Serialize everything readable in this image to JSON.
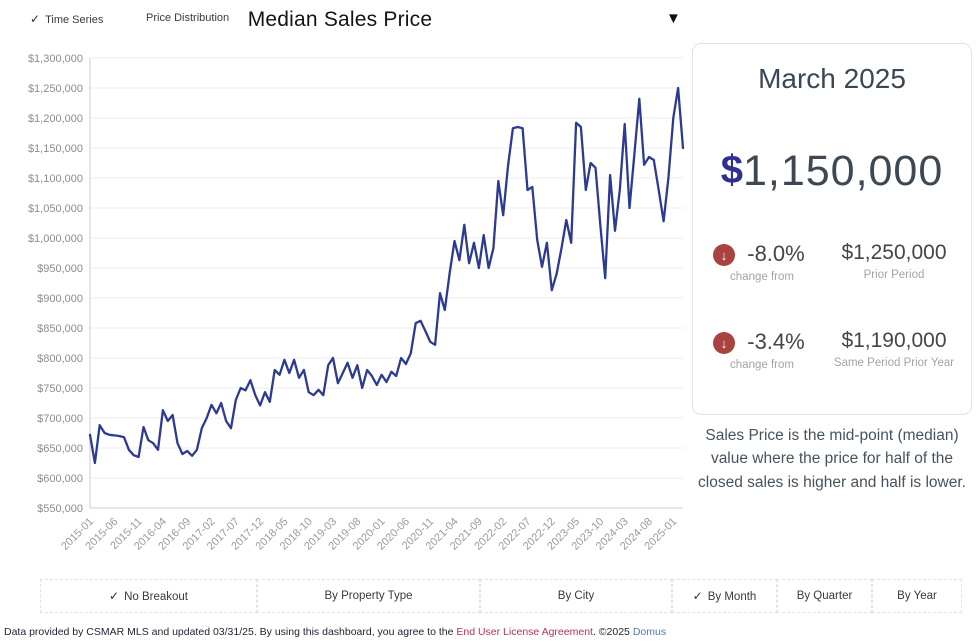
{
  "icons": {
    "check": "✓",
    "caret_down": "▼",
    "down_arrow": "↓"
  },
  "header": {
    "title": "Median Sales Price",
    "tabs": [
      {
        "label": "Time Series",
        "checked": true
      },
      {
        "label": "Price Distribution",
        "checked": false
      }
    ]
  },
  "chart_data": {
    "type": "line",
    "title": "Median Sales Price",
    "grid": true,
    "legend": false,
    "ylim": [
      550000,
      1300000
    ],
    "y_tick_step": 50000,
    "y_tick_labels": [
      "$550,000",
      "$600,000",
      "$650,000",
      "$700,000",
      "$750,000",
      "$800,000",
      "$850,000",
      "$900,000",
      "$950,000",
      "$1,000,000",
      "$1,050,000",
      "$1,100,000",
      "$1,150,000",
      "$1,200,000",
      "$1,250,000",
      "$1,300,000"
    ],
    "x_start": "2015-01",
    "x_end": "2025-03",
    "x_tick_interval_months": 5,
    "x_tick_labels": [
      "2015-01",
      "2015-06",
      "2015-11",
      "2016-04",
      "2016-09",
      "2017-02",
      "2017-07",
      "2017-12",
      "2018-05",
      "2018-10",
      "2019-03",
      "2019-08",
      "2020-01",
      "2020-06",
      "2020-11",
      "2021-04",
      "2021-09",
      "2022-02",
      "2022-07",
      "2022-12",
      "2023-05",
      "2023-10",
      "2024-03",
      "2024-08",
      "2025-01"
    ],
    "series": [
      {
        "name": "Median Sales Price",
        "color": "#2d3a94",
        "monthly_values": [
          672000,
          625000,
          688000,
          675000,
          672000,
          671000,
          670000,
          668000,
          647000,
          638000,
          635000,
          685000,
          663000,
          658000,
          647000,
          713000,
          695000,
          705000,
          658000,
          640000,
          645000,
          637000,
          647000,
          683000,
          700000,
          722000,
          708000,
          725000,
          695000,
          683000,
          730000,
          750000,
          746000,
          763000,
          738000,
          721000,
          743000,
          727000,
          780000,
          772000,
          797000,
          775000,
          797000,
          767000,
          780000,
          743000,
          738000,
          747000,
          738000,
          788000,
          800000,
          758000,
          775000,
          792000,
          767000,
          788000,
          750000,
          780000,
          770000,
          755000,
          772000,
          760000,
          777000,
          770000,
          800000,
          790000,
          808000,
          858000,
          862000,
          845000,
          827000,
          822000,
          908000,
          880000,
          942000,
          995000,
          963000,
          1022000,
          958000,
          992000,
          950000,
          1005000,
          950000,
          983000,
          1095000,
          1038000,
          1120000,
          1183000,
          1185000,
          1183000,
          1080000,
          1085000,
          997000,
          952000,
          992000,
          913000,
          940000,
          983000,
          1030000,
          992000,
          1192000,
          1185000,
          1080000,
          1125000,
          1117000,
          1020000,
          933000,
          1105000,
          1012000,
          1080000,
          1190000,
          1050000,
          1140000,
          1232000,
          1122000,
          1135000,
          1130000,
          1080000,
          1028000,
          1100000,
          1200000,
          1250000,
          1150000
        ]
      }
    ]
  },
  "summary_panel": {
    "period_label": "March 2025",
    "currency_symbol": "$",
    "value": "1,150,000",
    "comparisons": [
      {
        "direction": "down",
        "pct": "-8.0%",
        "caption": "change from",
        "amount": "$1,250,000",
        "amount_caption": "Prior Period"
      },
      {
        "direction": "down",
        "pct": "-3.4%",
        "caption": "change from",
        "amount": "$1,190,000",
        "amount_caption": "Same Period Prior Year"
      }
    ],
    "description": "Sales Price is the mid-point (median) value where the price for half of the closed sales is higher and half is lower."
  },
  "breakout_bar": {
    "options": [
      {
        "label": "No Breakout",
        "checked": true
      },
      {
        "label": "By Property Type",
        "checked": false
      },
      {
        "label": "By City",
        "checked": false
      },
      {
        "label": "By Month",
        "checked": true
      },
      {
        "label": "By Quarter",
        "checked": false
      },
      {
        "label": "By Year",
        "checked": false
      }
    ]
  },
  "footer": {
    "text_before_link": "Data provided by CSMAR MLS and updated 03/31/25.  By using this dashboard, you agree to the ",
    "license_link": "End User License Agreement",
    "text_middle": ".  ©2025 ",
    "brand_link": "Domus"
  },
  "colors": {
    "line": "#2d3a94",
    "currency": "#2e3192",
    "value_text": "#3d4852",
    "negative_badge": "#a84340",
    "grid": "#ececec",
    "axis": "#cccccc",
    "license_link": "#b73352",
    "brand_link": "#4a7ab5"
  }
}
